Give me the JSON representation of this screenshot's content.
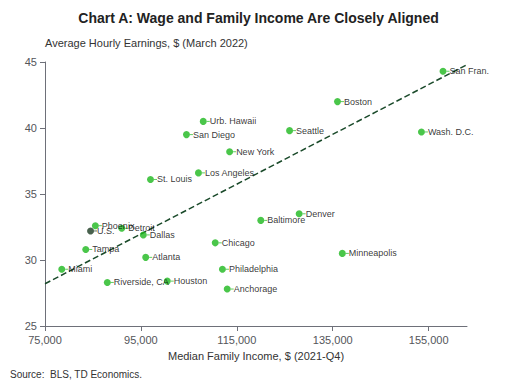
{
  "chart_data": {
    "type": "scatter",
    "title": "Chart A: Wage and Family Income Are Closely Aligned",
    "xlabel": "Median Family Income, $ (2021-Q4)",
    "ylabel": "Average Hourly Earnings, $ (March 2022)",
    "source": "Source:  BLS, TD Economics.",
    "xlim": [
      75000,
      163000
    ],
    "ylim": [
      25,
      45
    ],
    "xticks": [
      {
        "value": 75000,
        "label": "75,000"
      },
      {
        "value": 95000,
        "label": "95,000"
      },
      {
        "value": 115000,
        "label": "115,000"
      },
      {
        "value": 135000,
        "label": "135,000"
      },
      {
        "value": 155000,
        "label": "155,000"
      }
    ],
    "yticks": [
      25,
      30,
      35,
      40,
      45
    ],
    "grid": false,
    "series": [
      {
        "type": "scatter",
        "labels": [
          "Miami",
          "Riverside, CA",
          "Tampa",
          "U.S.",
          "Phoenix",
          "Detroit",
          "Dallas",
          "Atlanta",
          "Houston",
          "St. Louis",
          "Los Angeles",
          "San Diego",
          "Urb. Hawaii",
          "Chicago",
          "Philadelphia",
          "Anchorage",
          "New York",
          "Baltimore",
          "Denver",
          "Minneapolis",
          "Seattle",
          "Boston",
          "Wash. D.C.",
          "San Fran."
        ],
        "x": [
          78500,
          88000,
          83500,
          84500,
          85500,
          91000,
          95500,
          96000,
          100500,
          97000,
          107000,
          104500,
          108000,
          110500,
          112000,
          113000,
          113500,
          120000,
          128000,
          137000,
          126000,
          136000,
          153500,
          158000
        ],
        "values": [
          29.3,
          28.3,
          30.8,
          32.2,
          32.6,
          32.4,
          31.9,
          30.2,
          28.4,
          36.1,
          36.6,
          39.5,
          40.5,
          31.3,
          29.3,
          27.8,
          38.2,
          33.0,
          33.5,
          30.5,
          39.8,
          42.0,
          39.7,
          44.3
        ],
        "colors": [
          "#1db81d",
          "#1db81d",
          "#1db81d",
          "#1a3a20",
          "#1db81d",
          "#1db81d",
          "#1db81d",
          "#1db81d",
          "#1db81d",
          "#1db81d",
          "#1db81d",
          "#1db81d",
          "#1db81d",
          "#1db81d",
          "#1db81d",
          "#1db81d",
          "#1db81d",
          "#1db81d",
          "#1db81d",
          "#1db81d",
          "#1db81d",
          "#1db81d",
          "#1db81d",
          "#1db81d"
        ]
      },
      {
        "type": "line",
        "x": [
          75000,
          163000
        ],
        "values": [
          28.2,
          44.8
        ],
        "color": "#1a4a2a",
        "line_style": "dashed"
      }
    ]
  }
}
